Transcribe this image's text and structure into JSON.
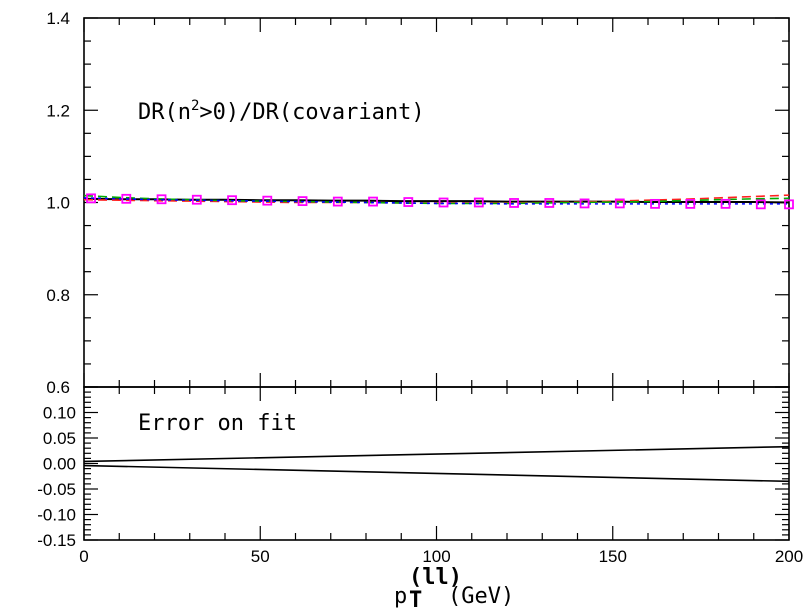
{
  "chart_data": [
    {
      "type": "line",
      "panel": "top",
      "annotation": "DR(n²>0)/DR(covariant)",
      "xlim": [
        0,
        200
      ],
      "ylim": [
        0.6,
        1.4
      ],
      "y_major_ticks": [
        0.6,
        0.8,
        1.0,
        1.2,
        1.4
      ],
      "y_tick_labels": [
        "0.6",
        "0.8",
        "1.0",
        "1.2",
        "1.4"
      ],
      "grid": false,
      "x": [
        0,
        10,
        20,
        30,
        40,
        50,
        60,
        70,
        80,
        90,
        100,
        110,
        120,
        130,
        140,
        150,
        160,
        170,
        180,
        190,
        200
      ],
      "series": [
        {
          "color": "#000000",
          "style": "solid",
          "values": [
            1.008,
            1.007,
            1.007,
            1.006,
            1.006,
            1.005,
            1.005,
            1.004,
            1.004,
            1.003,
            1.003,
            1.003,
            1.002,
            1.002,
            1.002,
            1.002,
            1.001,
            1.001,
            1.001,
            1.001,
            1.0
          ]
        },
        {
          "color": "#ff2020",
          "style": "dashed",
          "values": [
            1.006,
            1.005,
            1.004,
            1.003,
            1.002,
            1.001,
            1.0,
            1.0,
            1.0,
            0.999,
            0.999,
            0.999,
            0.999,
            1.0,
            1.001,
            1.003,
            1.005,
            1.007,
            1.01,
            1.013,
            1.016
          ]
        },
        {
          "color": "#00aa00",
          "style": "dashed",
          "values": [
            1.015,
            1.011,
            1.008,
            1.006,
            1.004,
            1.003,
            1.002,
            1.001,
            1.0,
            0.999,
            0.998,
            0.998,
            0.998,
            0.999,
            1.0,
            1.001,
            1.002,
            1.004,
            1.006,
            1.008,
            1.009
          ]
        },
        {
          "color": "#0000ff",
          "style": "dotted",
          "values": [
            1.01,
            1.008,
            1.006,
            1.005,
            1.004,
            1.003,
            1.002,
            1.001,
            1.0,
            0.999,
            0.998,
            0.998,
            0.997,
            0.997,
            0.997,
            0.997,
            0.997,
            0.997,
            0.997,
            0.997,
            0.997
          ]
        },
        {
          "color": "#ff00ff",
          "style": "markers",
          "marker": "open-square",
          "x": [
            2,
            12,
            22,
            32,
            42,
            52,
            62,
            72,
            82,
            92,
            102,
            112,
            122,
            132,
            142,
            152,
            162,
            172,
            182,
            192,
            200
          ],
          "values": [
            1.009,
            1.008,
            1.007,
            1.006,
            1.005,
            1.004,
            1.003,
            1.002,
            1.002,
            1.001,
            1.0,
            1.0,
            0.999,
            0.999,
            0.998,
            0.998,
            0.997,
            0.997,
            0.997,
            0.996,
            0.996
          ]
        }
      ]
    },
    {
      "type": "line",
      "panel": "bottom",
      "annotation": "Error on fit",
      "xlim": [
        0,
        200
      ],
      "ylim": [
        -0.15,
        0.15
      ],
      "y_major_ticks": [
        -0.15,
        -0.1,
        -0.05,
        0.0,
        0.05,
        0.1
      ],
      "y_tick_labels": [
        "-0.15",
        "-0.10",
        "-0.05",
        "0.00",
        "0.05",
        "0.10"
      ],
      "x_major_ticks": [
        0,
        50,
        100,
        150,
        200
      ],
      "x_tick_labels": [
        "0",
        "50",
        "100",
        "150",
        "200"
      ],
      "xlabel": {
        "base": "p",
        "sub": "T",
        "sup": "(ll)",
        "unit": "(GeV)"
      },
      "grid": false,
      "x": [
        0,
        200
      ],
      "series": [
        {
          "color": "#000000",
          "style": "solid",
          "values": [
            0.004,
            0.033
          ]
        },
        {
          "color": "#000000",
          "style": "solid",
          "values": [
            -0.004,
            -0.035
          ]
        }
      ]
    }
  ]
}
